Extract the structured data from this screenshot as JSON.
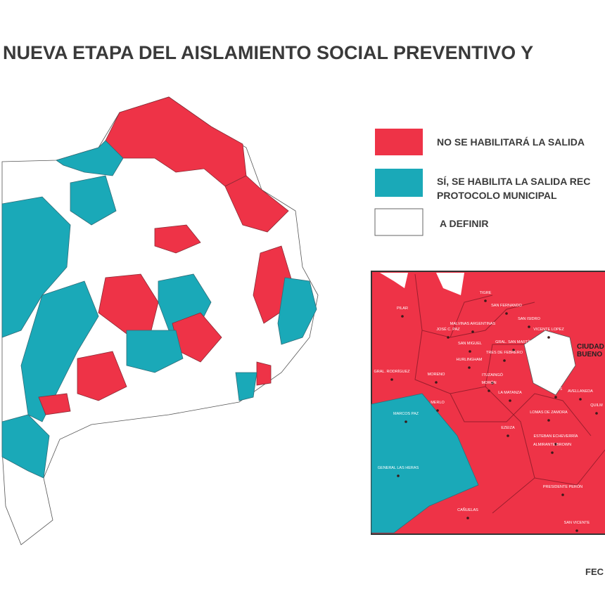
{
  "header": {
    "title": "NUEVA ETAPA DEL AISLAMIENTO SOCIAL PREVENTIVO Y"
  },
  "legend": [
    {
      "lines": [
        "NO SE HABILITARÁ LA SALIDA"
      ]
    },
    {
      "lines": [
        "SÍ, SE HABILITA LA SALIDA REC",
        "PROTOCOLO MUNICIPAL"
      ]
    },
    {
      "lines": [
        "A DEFINIR"
      ]
    }
  ],
  "inset": {
    "city": [
      "CIUDAD",
      "BUENO"
    ],
    "labels": [
      "PILAR",
      "TIGRE",
      "SAN FERNANDO",
      "SAN ISIDRO",
      "VICENTE LOPEZ",
      "JOSÉ C. PAZ",
      "MALVINAS ARGENTINAS",
      "SAN MIGUEL",
      "GRAL. SAN MARTÍN",
      "TRES DE FEBRERO",
      "HURLINGHAM",
      "ITUZAINGÓ",
      "MORENO",
      "MORÓN",
      "LA MATANZA",
      "MERLO",
      "GRAL. RODRÍGUEZ",
      "MARCOS PAZ",
      "GENERAL LAS HERAS",
      "CAÑUELAS",
      "EZEIZA",
      "ESTEBAN ECHEVERRÍA",
      "LOMAS DE ZAMORA",
      "LANÚS",
      "AVELLANEDA",
      "ALMIRANTE BROWN",
      "PRESIDENTE PERÓN",
      "SAN VICENTE",
      "QUILM"
    ]
  },
  "footer": {
    "text": "FEC"
  }
}
